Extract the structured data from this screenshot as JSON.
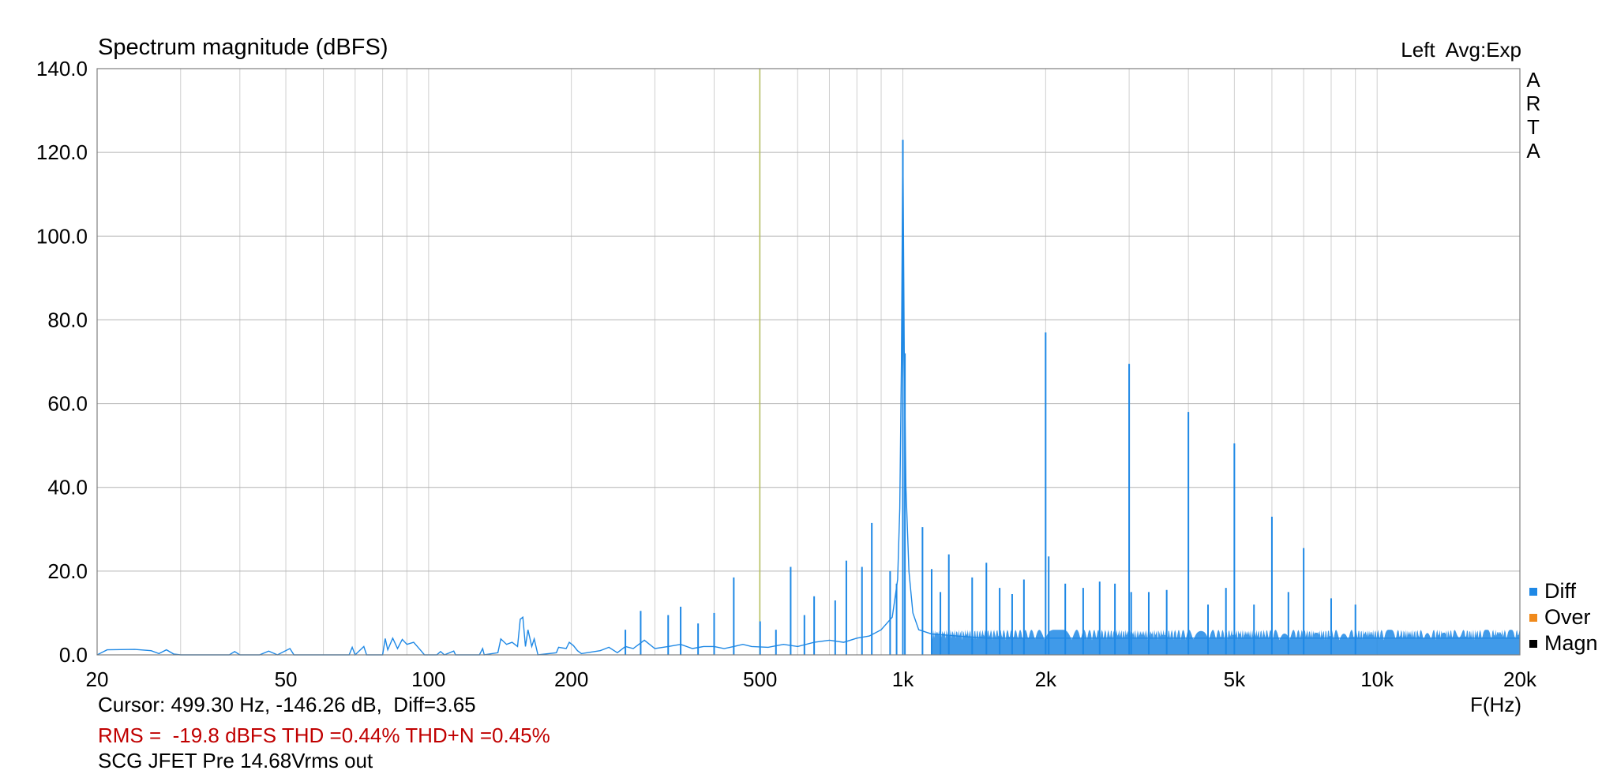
{
  "header": {
    "title": "Spectrum magnitude (dBFS)",
    "meta": "Left  Avg:Exp",
    "brand_letters": [
      "A",
      "R",
      "T",
      "A"
    ]
  },
  "footer": {
    "cursor": "Cursor: 499.30 Hz, -146.26 dB,  Diff=3.65",
    "stats": "RMS =  -19.8 dBFS THD =0.44% THD+N =0.45%",
    "caption": "SCG JFET Pre 14.68Vrms out",
    "x_unit": "F(Hz)"
  },
  "colors": {
    "series": "#1e88e5",
    "cursor_line": "#b5bf5a",
    "grid": "#cfcfcf",
    "frame": "#808080",
    "stats_text": "#c00000"
  },
  "chart_data": {
    "type": "line",
    "title": "Spectrum magnitude (dBFS)",
    "xlabel": "F(Hz)",
    "ylabel": "",
    "x_scale": "log",
    "xlim": [
      20,
      20000
    ],
    "ylim": [
      0,
      140
    ],
    "grid": true,
    "legend_position": "bottom-right",
    "x_ticks": [
      {
        "value": 20,
        "label": "20"
      },
      {
        "value": 50,
        "label": "50"
      },
      {
        "value": 100,
        "label": "100"
      },
      {
        "value": 200,
        "label": "200"
      },
      {
        "value": 500,
        "label": "500"
      },
      {
        "value": 1000,
        "label": "1k"
      },
      {
        "value": 2000,
        "label": "2k"
      },
      {
        "value": 5000,
        "label": "5k"
      },
      {
        "value": 10000,
        "label": "10k"
      },
      {
        "value": 20000,
        "label": "20k"
      }
    ],
    "y_ticks": [
      {
        "value": 0,
        "label": "0.0"
      },
      {
        "value": 20,
        "label": "20.0"
      },
      {
        "value": 40,
        "label": "40.0"
      },
      {
        "value": 60,
        "label": "60.0"
      },
      {
        "value": 80,
        "label": "80.0"
      },
      {
        "value": 100,
        "label": "100.0"
      },
      {
        "value": 120,
        "label": "120.0"
      },
      {
        "value": 140,
        "label": "140.0"
      }
    ],
    "cursor_x": 499.3,
    "legend": [
      {
        "name": "Diff",
        "color": "#1e88e5"
      },
      {
        "name": "Over",
        "color": "#f08a1c"
      },
      {
        "name": "Magn",
        "color": "#000000"
      }
    ],
    "series": [
      {
        "name": "Diff",
        "color": "#1e88e5",
        "noise_floor": [
          [
            20,
            0
          ],
          [
            21,
            1.2
          ],
          [
            24,
            1.3
          ],
          [
            26,
            1.0
          ],
          [
            27,
            0.3
          ],
          [
            28,
            1.2
          ],
          [
            29,
            0.2
          ],
          [
            30,
            0
          ],
          [
            38,
            0
          ],
          [
            39,
            0.8
          ],
          [
            40,
            0
          ],
          [
            44,
            0
          ],
          [
            46,
            0.9
          ],
          [
            48,
            0
          ],
          [
            51,
            1.5
          ],
          [
            52,
            0
          ],
          [
            68,
            0
          ],
          [
            69,
            1.8
          ],
          [
            70,
            0
          ],
          [
            73,
            2.0
          ],
          [
            74,
            0
          ],
          [
            80,
            0
          ],
          [
            81,
            3.9
          ],
          [
            82,
            1.2
          ],
          [
            84,
            4.0
          ],
          [
            86,
            1.5
          ],
          [
            88,
            3.7
          ],
          [
            90,
            2.5
          ],
          [
            93,
            3.0
          ],
          [
            96,
            1.2
          ],
          [
            98,
            0
          ],
          [
            104,
            0
          ],
          [
            106,
            0.8
          ],
          [
            108,
            0
          ],
          [
            113,
            0.9
          ],
          [
            114,
            0
          ],
          [
            128,
            0
          ],
          [
            130,
            1.5
          ],
          [
            131,
            0
          ],
          [
            140,
            0.5
          ],
          [
            142,
            3.8
          ],
          [
            146,
            2.5
          ],
          [
            150,
            3.0
          ],
          [
            154,
            2.0
          ],
          [
            156,
            8.5
          ],
          [
            158,
            9.0
          ],
          [
            160,
            2.0
          ],
          [
            162,
            6.0
          ],
          [
            165,
            2.0
          ],
          [
            167,
            3.8
          ],
          [
            170,
            0
          ],
          [
            186,
            0.5
          ],
          [
            188,
            1.8
          ],
          [
            195,
            1.5
          ],
          [
            198,
            3.0
          ],
          [
            202,
            2.2
          ],
          [
            206,
            1.0
          ],
          [
            210,
            0.3
          ],
          [
            230,
            1.0
          ],
          [
            240,
            1.8
          ],
          [
            250,
            0.5
          ],
          [
            260,
            2.0
          ],
          [
            270,
            1.5
          ],
          [
            285,
            3.5
          ],
          [
            300,
            1.5
          ],
          [
            320,
            2.0
          ],
          [
            340,
            2.5
          ],
          [
            360,
            1.5
          ],
          [
            380,
            2.0
          ],
          [
            400,
            2.0
          ],
          [
            420,
            1.5
          ],
          [
            440,
            2.0
          ],
          [
            460,
            2.5
          ],
          [
            480,
            2.0
          ],
          [
            520,
            1.8
          ],
          [
            560,
            2.5
          ],
          [
            600,
            2.0
          ],
          [
            650,
            3.0
          ],
          [
            700,
            3.5
          ],
          [
            750,
            3.0
          ],
          [
            800,
            4.0
          ],
          [
            850,
            4.5
          ],
          [
            900,
            6.0
          ],
          [
            950,
            9.0
          ],
          [
            975,
            18.0
          ],
          [
            985,
            35.0
          ],
          [
            993,
            70.0
          ],
          [
            997,
            100.0
          ],
          [
            1000,
            123.0
          ],
          [
            1003,
            100.0
          ],
          [
            1007,
            72.0
          ],
          [
            1015,
            40.0
          ],
          [
            1030,
            20.0
          ],
          [
            1050,
            10.0
          ],
          [
            1080,
            6.0
          ],
          [
            1150,
            5.0
          ],
          [
            1300,
            4.5
          ],
          [
            1500,
            4.0
          ],
          [
            2000,
            4.0
          ],
          [
            3000,
            4.0
          ],
          [
            5000,
            4.0
          ],
          [
            8000,
            4.0
          ],
          [
            12000,
            4.0
          ],
          [
            20000,
            4.0
          ]
        ],
        "peaks": [
          {
            "x": 1000,
            "y": 123.0
          },
          {
            "x": 2000,
            "y": 77.0
          },
          {
            "x": 3000,
            "y": 69.5
          },
          {
            "x": 4000,
            "y": 58.0
          },
          {
            "x": 5000,
            "y": 50.5
          },
          {
            "x": 6000,
            "y": 33.0
          },
          {
            "x": 7000,
            "y": 25.5
          },
          {
            "x": 1010,
            "y": 72.0
          },
          {
            "x": 2030,
            "y": 23.5
          },
          {
            "x": 3030,
            "y": 15.0
          },
          {
            "x": 1100,
            "y": 30.5
          },
          {
            "x": 1250,
            "y": 24.0
          },
          {
            "x": 1150,
            "y": 20.5
          },
          {
            "x": 1200,
            "y": 15.0
          },
          {
            "x": 1400,
            "y": 18.5
          },
          {
            "x": 1500,
            "y": 22.0
          },
          {
            "x": 1600,
            "y": 16.0
          },
          {
            "x": 1700,
            "y": 14.5
          },
          {
            "x": 1800,
            "y": 18.0
          },
          {
            "x": 2200,
            "y": 17.0
          },
          {
            "x": 2400,
            "y": 16.0
          },
          {
            "x": 2600,
            "y": 17.5
          },
          {
            "x": 2800,
            "y": 17.0
          },
          {
            "x": 3300,
            "y": 15.0
          },
          {
            "x": 3600,
            "y": 15.5
          },
          {
            "x": 4400,
            "y": 12.0
          },
          {
            "x": 4800,
            "y": 16.0
          },
          {
            "x": 5500,
            "y": 12.0
          },
          {
            "x": 6500,
            "y": 15.0
          },
          {
            "x": 8000,
            "y": 13.5
          },
          {
            "x": 9000,
            "y": 12.0
          },
          {
            "x": 440,
            "y": 18.5
          },
          {
            "x": 580,
            "y": 21.0
          },
          {
            "x": 760,
            "y": 22.5
          },
          {
            "x": 860,
            "y": 31.5
          },
          {
            "x": 820,
            "y": 21.0
          },
          {
            "x": 940,
            "y": 20.0
          },
          {
            "x": 970,
            "y": 17.0
          },
          {
            "x": 720,
            "y": 13.0
          },
          {
            "x": 650,
            "y": 14.0
          },
          {
            "x": 620,
            "y": 9.5
          },
          {
            "x": 400,
            "y": 10.0
          },
          {
            "x": 370,
            "y": 7.5
          },
          {
            "x": 340,
            "y": 11.5
          },
          {
            "x": 320,
            "y": 9.5
          },
          {
            "x": 280,
            "y": 10.5
          },
          {
            "x": 260,
            "y": 6.0
          },
          {
            "x": 500,
            "y": 8.0
          },
          {
            "x": 540,
            "y": 6.0
          }
        ]
      }
    ]
  }
}
